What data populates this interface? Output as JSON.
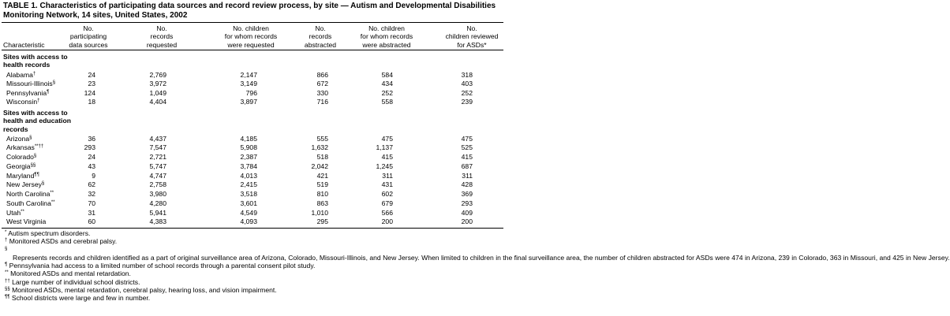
{
  "title_lines": [
    "TABLE 1. Characteristics of participating data sources and record review process, by site — Autism and Developmental Disabilities",
    "Monitoring Network, 14 sites, United States, 2002"
  ],
  "columns": [
    {
      "lines": [
        "Characteristic"
      ]
    },
    {
      "lines": [
        "No.",
        "participating",
        "data sources"
      ]
    },
    {
      "lines": [
        "No.",
        "records",
        "requested"
      ]
    },
    {
      "lines": [
        "No. children",
        "for whom records",
        "were requested"
      ]
    },
    {
      "lines": [
        "No.",
        "records",
        "abstracted"
      ]
    },
    {
      "lines": [
        "No. children",
        "for whom records",
        "were abstracted"
      ]
    },
    {
      "lines": [
        "No.",
        "children reviewed",
        "for ASDs*"
      ]
    }
  ],
  "sections": [
    {
      "heading_lines": [
        "Sites with access to",
        "health records"
      ],
      "rows": [
        {
          "site": "Alabama",
          "note": "†",
          "cells": [
            "24",
            "2,769",
            "2,147",
            "866",
            "584",
            "318"
          ]
        },
        {
          "site": "Missouri-Illinois",
          "note": "§",
          "cells": [
            "23",
            "3,972",
            "3,149",
            "672",
            "434",
            "403"
          ]
        },
        {
          "site": "Pennsylvania",
          "note": "¶",
          "cells": [
            "124",
            "1,049",
            "796",
            "330",
            "252",
            "252"
          ]
        },
        {
          "site": "Wisconsin",
          "note": "†",
          "cells": [
            "18",
            "4,404",
            "3,897",
            "716",
            "558",
            "239"
          ]
        }
      ]
    },
    {
      "heading_lines": [
        "Sites with access to",
        "health and education",
        "records"
      ],
      "rows": [
        {
          "site": "Arizona",
          "note": "§",
          "cells": [
            "36",
            "4,437",
            "4,185",
            "555",
            "475",
            "475"
          ]
        },
        {
          "site": "Arkansas",
          "note": "**††",
          "cells": [
            "293",
            "7,547",
            "5,908",
            "1,632",
            "1,137",
            "525"
          ]
        },
        {
          "site": "Colorado",
          "note": "§",
          "cells": [
            "24",
            "2,721",
            "2,387",
            "518",
            "415",
            "415"
          ]
        },
        {
          "site": "Georgia",
          "note": "§§",
          "cells": [
            "43",
            "5,747",
            "3,784",
            "2,042",
            "1,245",
            "687"
          ]
        },
        {
          "site": "Maryland",
          "note": "¶¶",
          "cells": [
            "9",
            "4,747",
            "4,013",
            "421",
            "311",
            "311"
          ]
        },
        {
          "site": "New Jersey",
          "note": "§",
          "cells": [
            "62",
            "2,758",
            "2,415",
            "519",
            "431",
            "428"
          ]
        },
        {
          "site": "North Carolina",
          "note": "**",
          "cells": [
            "32",
            "3,980",
            "3,518",
            "810",
            "602",
            "369"
          ]
        },
        {
          "site": "South Carolina",
          "note": "**",
          "cells": [
            "70",
            "4,280",
            "3,601",
            "863",
            "679",
            "293"
          ]
        },
        {
          "site": "Utah",
          "note": "**",
          "cells": [
            "31",
            "5,941",
            "4,549",
            "1,010",
            "566",
            "409"
          ]
        },
        {
          "site": "West Virginia",
          "cells": [
            "60",
            "4,383",
            "4,093",
            "295",
            "200",
            "200"
          ]
        }
      ]
    }
  ],
  "footnotes": [
    {
      "symbol": "*",
      "text": "Autism spectrum disorders."
    },
    {
      "symbol": "†",
      "text": "Monitored ASDs and cerebral palsy."
    },
    {
      "symbol": "§",
      "text": "Represents records and children identified as a part of original surveillance area of Arizona, Colorado, Missouri-Illinois, and New Jersey. When limited to children in the final surveillance area, the number of children abstracted for ASDs were 474 in Arizona, 239 in Colorado, 363 in Missouri, and 425 in New Jersey."
    },
    {
      "symbol": "¶",
      "text": "Pennsylvania had access to a limited number of school records through a parental consent pilot study."
    },
    {
      "symbol": "**",
      "text": "Monitored ASDs and mental retardation."
    },
    {
      "symbol": "††",
      "text": "Large number of individual school districts."
    },
    {
      "symbol": "§§",
      "text": "Monitored ASDs, mental retardation, cerebral palsy, hearing loss, and vision impairment."
    },
    {
      "symbol": "¶¶",
      "text": "School districts were large and few in number."
    }
  ]
}
